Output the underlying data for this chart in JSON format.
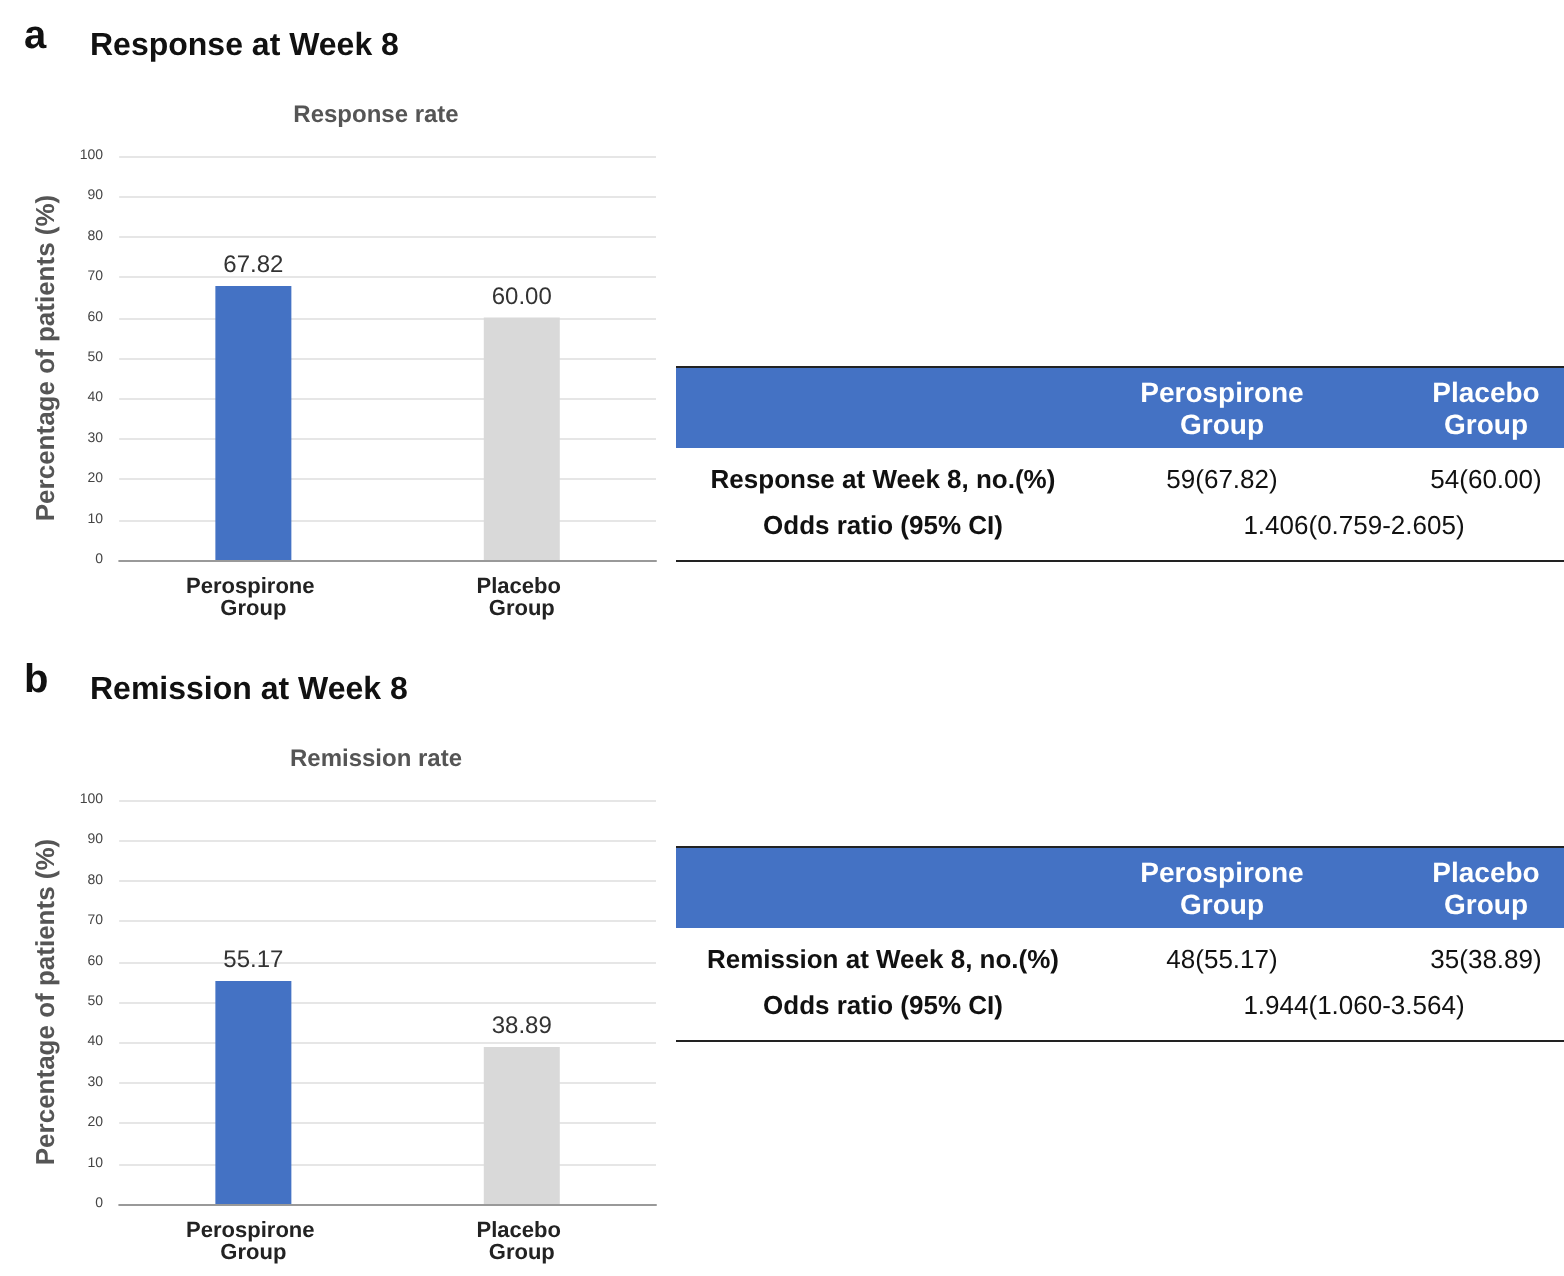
{
  "chart_data": [
    {
      "type": "bar",
      "title": "Response at Week 8",
      "subtitle": "Response rate",
      "annotations": [
        "a"
      ],
      "ylabel": "Percentage of patients (%)",
      "categories": [
        "Perospirone Group",
        "Placebo Group"
      ],
      "values": [
        67.82,
        60.0
      ],
      "value_labels": [
        "67.82",
        "60.00"
      ],
      "colors": [
        "#4472c4",
        "#d9d9d9"
      ],
      "ylim": [
        0,
        100
      ],
      "yticks": [
        0,
        10,
        20,
        30,
        40,
        50,
        60,
        70,
        80,
        90,
        100
      ],
      "grid": "y"
    },
    {
      "type": "other",
      "annotations": [
        "Perospirone Group",
        "Placebo Group",
        "Response at Week 8, no.(%)",
        "59(67.82)",
        "54(60.00)",
        "Odds ratio (95% CI)",
        "1.406(0.759-2.605)"
      ]
    },
    {
      "type": "bar",
      "title": "Remission at Week 8",
      "subtitle": "Remission rate",
      "annotations": [
        "b"
      ],
      "ylabel": "Percentage of patients (%)",
      "categories": [
        "Perospirone Group",
        "Placebo Group"
      ],
      "values": [
        55.17,
        38.89
      ],
      "data_labels": true,
      "colors": [
        "#4472c4",
        "#d9d9d9"
      ],
      "ylim": [
        0,
        100
      ],
      "yticks": [
        0,
        10,
        20,
        30,
        40,
        50,
        60,
        70,
        80,
        90,
        100
      ],
      "grid": "y"
    },
    {
      "type": "other",
      "annotations": [
        "Perospirone Group",
        "Placebo Group",
        "Remission at Week 8, no.(%)",
        "48(55.17)",
        "35(38.89)",
        "Odds ratio (95% CI)",
        "1.944(1.060-3.564)"
      ]
    }
  ]
}
